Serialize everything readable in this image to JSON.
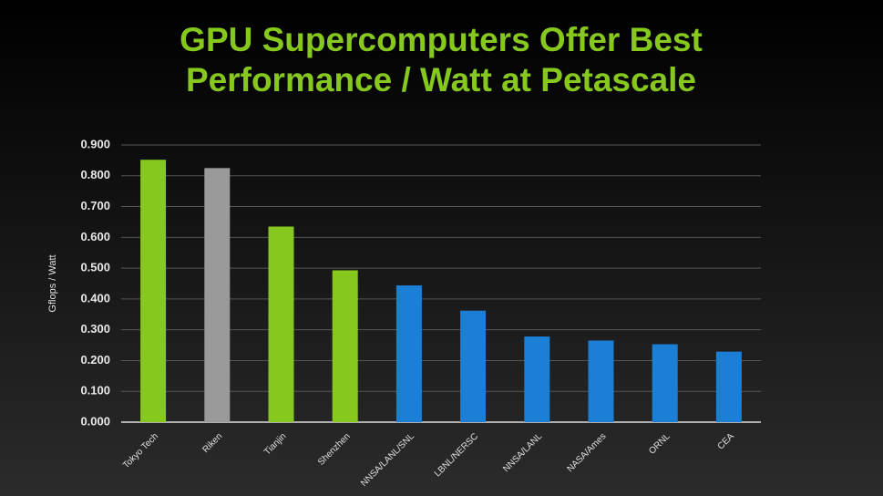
{
  "chart_data": {
    "type": "bar",
    "title": [
      "GPU Supercomputers Offer Best",
      "Performance / Watt at Petascale"
    ],
    "y_label": "Gflops / Watt",
    "categories": [
      "Tokyo Tech",
      "Riken",
      "Tianjin",
      "Shenzhen",
      "NNSA/LANL/SNL",
      "LBNL/NERSC",
      "NNSA/LANL",
      "NASA/Ames",
      "ORNL",
      "CEA"
    ],
    "values": [
      0.852,
      0.825,
      0.635,
      0.493,
      0.444,
      0.362,
      0.278,
      0.265,
      0.253,
      0.229
    ],
    "colors": [
      "#86c81e",
      "#9a9a9a",
      "#86c81e",
      "#86c81e",
      "#1c7fd6",
      "#1c7fd6",
      "#1c7fd6",
      "#1c7fd6",
      "#1c7fd6",
      "#1c7fd6"
    ],
    "ylim": [
      0,
      0.9
    ],
    "yticks": [
      {
        "value": 0,
        "label": "0.000"
      },
      {
        "value": 0.1,
        "label": "0.100"
      },
      {
        "value": 0.2,
        "label": "0.200"
      },
      {
        "value": 0.3,
        "label": "0.300"
      },
      {
        "value": 0.4,
        "label": "0.400"
      },
      {
        "value": 0.5,
        "label": "0.500"
      },
      {
        "value": 0.6,
        "label": "0.600"
      },
      {
        "value": 0.7,
        "label": "0.700"
      },
      {
        "value": 0.8,
        "label": "0.800"
      },
      {
        "value": 0.9,
        "label": "0.900"
      }
    ],
    "grid": true
  }
}
